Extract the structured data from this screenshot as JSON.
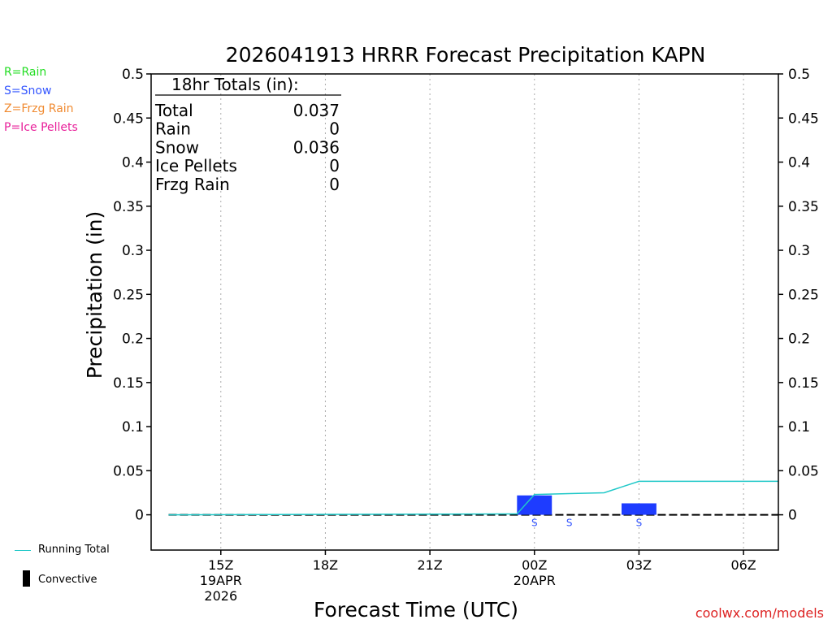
{
  "chart_data": {
    "type": "bar",
    "title": "2026041913 HRRR Forecast Precipitation KAPN",
    "xlabel": "Forecast Time (UTC)",
    "ylabel": "Precipitation (in)",
    "ylim": [
      -0.04,
      0.5
    ],
    "yticks": [
      0,
      0.05,
      0.1,
      0.15,
      0.2,
      0.25,
      0.3,
      0.35,
      0.4,
      0.45,
      0.5
    ],
    "ytick_labels": [
      "0",
      "0.05",
      "0.1",
      "0.15",
      "0.2",
      "0.25",
      "0.3",
      "0.35",
      "0.4",
      "0.45",
      "0.5"
    ],
    "xlim_hours": [
      13,
      31
    ],
    "x_unit": "forecast hour (UTC, from 19APR 00Z)",
    "x_ticks": [
      {
        "hour": 15,
        "label": "15Z",
        "date": "19APR",
        "year": "2026"
      },
      {
        "hour": 18,
        "label": "18Z",
        "date": "",
        "year": ""
      },
      {
        "hour": 21,
        "label": "21Z",
        "date": "",
        "year": ""
      },
      {
        "hour": 24,
        "label": "00Z",
        "date": "20APR",
        "year": ""
      },
      {
        "hour": 27,
        "label": "03Z",
        "date": "",
        "year": ""
      },
      {
        "hour": 30,
        "label": "06Z",
        "date": "",
        "year": ""
      }
    ],
    "bars": {
      "name": "Snow",
      "hours": [
        24,
        27
      ],
      "values": [
        0.022,
        0.013
      ],
      "color": "#1e3cff"
    },
    "convective": [],
    "running_total": {
      "name": "Running Total",
      "color": "#20c8c8",
      "hours": [
        13.5,
        23.5,
        24,
        25,
        26,
        27,
        31
      ],
      "values": [
        0,
        0.001,
        0.023,
        0.024,
        0.025,
        0.038,
        0.038
      ]
    },
    "ptype_markers": [
      {
        "hour": 24,
        "label": "S"
      },
      {
        "hour": 25,
        "label": "S"
      },
      {
        "hour": 27,
        "label": "S"
      }
    ]
  },
  "totals": {
    "header": "18hr Totals (in):",
    "rows": [
      {
        "label": "Total",
        "value": "0.037"
      },
      {
        "label": "Rain",
        "value": "0"
      },
      {
        "label": "Snow",
        "value": "0.036"
      },
      {
        "label": "Ice Pellets",
        "value": "0"
      },
      {
        "label": "Frzg Rain",
        "value": "0"
      }
    ]
  },
  "ptype_legend": [
    {
      "label": "R=Rain",
      "color": "#22dd22"
    },
    {
      "label": "S=Snow",
      "color": "#3355ff"
    },
    {
      "label": "Z=Frzg Rain",
      "color": "#f08a30"
    },
    {
      "label": "P=Ice Pellets",
      "color": "#e8209a"
    }
  ],
  "series_legend": {
    "running_total": "Running Total",
    "convective": "Convective"
  },
  "watermark": "coolwx.com/models"
}
